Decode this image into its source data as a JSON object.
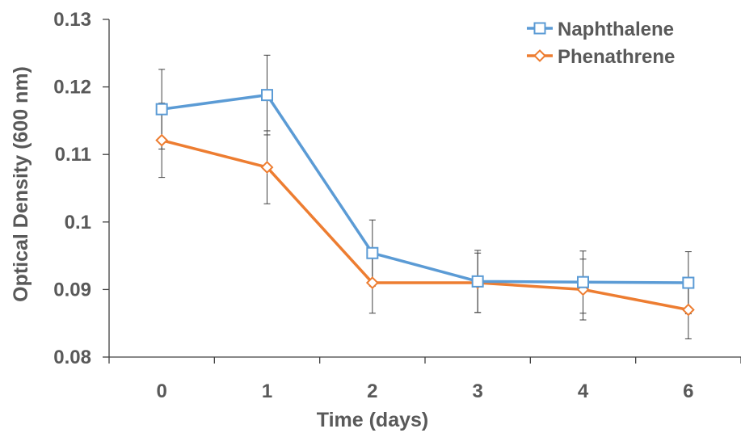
{
  "chart_data": {
    "type": "line",
    "title": "",
    "xlabel": "Time (days)",
    "ylabel": "Optical Density (600 nm)",
    "x": [
      0,
      1,
      2,
      3,
      4,
      6
    ],
    "x_tick_labels": [
      "0",
      "1",
      "2",
      "3",
      "4",
      "6"
    ],
    "ylim": [
      0.08,
      0.13
    ],
    "y_ticks": [
      0.08,
      0.09,
      0.1,
      0.11,
      0.12,
      0.13
    ],
    "y_tick_labels": [
      "0.08",
      "0.09",
      "0.1",
      "0.11",
      "0.12",
      "0.13"
    ],
    "grid": false,
    "legend_position": "top-right",
    "series": [
      {
        "name": "Naphthalene",
        "color": "#5B9BD5",
        "marker": "square-open",
        "values": [
          0.1167,
          0.1188,
          0.0954,
          0.0912,
          0.0911,
          0.091
        ],
        "error": [
          0.0059,
          0.0059,
          0.0049,
          0.0046,
          0.0046,
          0.0046
        ]
      },
      {
        "name": "Phenathrene",
        "color": "#ED7D31",
        "marker": "diamond-open",
        "values": [
          0.1121,
          0.1081,
          0.091,
          0.091,
          0.09,
          0.087
        ],
        "error": [
          0.0055,
          0.0054,
          0.0045,
          0.0044,
          0.0045,
          0.0043
        ]
      }
    ]
  }
}
